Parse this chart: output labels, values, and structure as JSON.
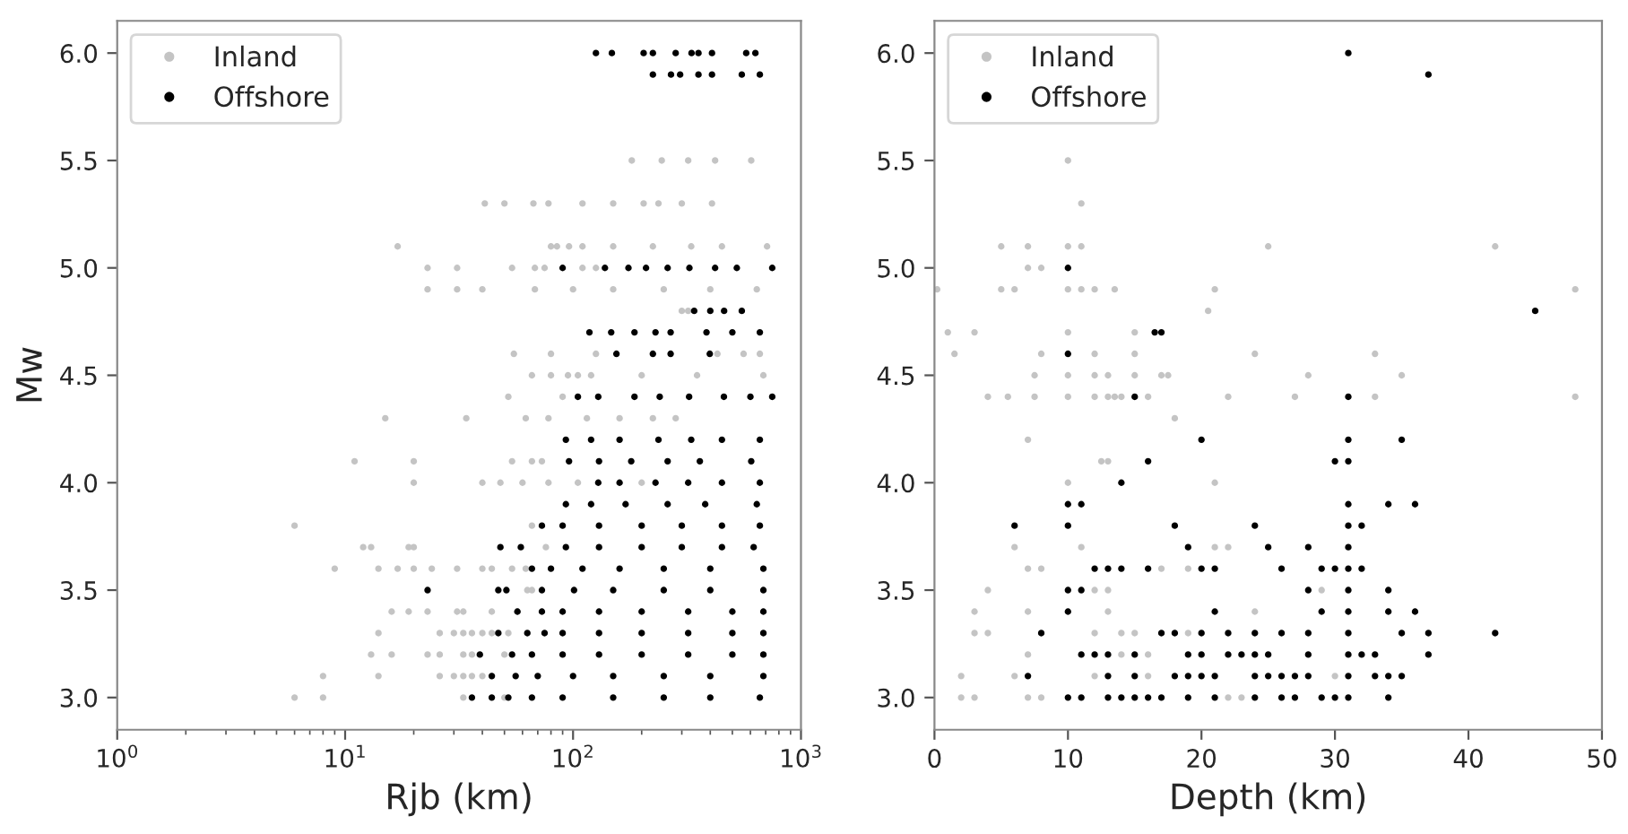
{
  "chart_data": [
    {
      "type": "scatter",
      "xlabel": "Rjb (km)",
      "ylabel": "Mw",
      "log": "x",
      "xlim": [
        1,
        1000
      ],
      "xticks": [
        {
          "value": 1,
          "label": "10$^{0}$"
        },
        {
          "value": 10,
          "label": "10$^{1}$"
        },
        {
          "value": 100,
          "label": "10$^{2}$"
        },
        {
          "value": 1000,
          "label": "10$^{3}$"
        }
      ],
      "ylim": [
        2.85,
        6.15
      ],
      "yticks": [
        {
          "value": 3,
          "label": "3.0"
        },
        {
          "value": 3.5,
          "label": "3.5"
        },
        {
          "value": 4,
          "label": "4.0"
        },
        {
          "value": 4.5,
          "label": "4.5"
        },
        {
          "value": 5,
          "label": "5.0"
        },
        {
          "value": 5.5,
          "label": "5.5"
        },
        {
          "value": 6,
          "label": "6.0"
        }
      ],
      "grid": false,
      "legend": "top left",
      "marker": "circle",
      "series": [
        {
          "name": "Inland",
          "color": "#c4c4c4",
          "x": [
            181,
            245,
            320,
            420,
            605,
            41,
            50,
            67,
            78,
            110,
            150,
            204,
            237,
            300,
            407,
            17,
            80,
            85,
            96,
            110,
            150,
            224,
            330,
            450,
            710,
            23,
            31,
            54,
            68,
            75,
            110,
            126,
            23,
            31,
            40,
            68,
            100,
            150,
            250,
            400,
            640,
            300,
            320,
            55,
            80,
            126,
            430,
            560,
            660,
            66,
            80,
            95,
            105,
            120,
            200,
            350,
            684,
            52,
            90,
            15,
            34,
            62,
            78,
            115,
            160,
            224,
            282,
            11,
            20,
            54,
            66,
            73,
            20,
            40,
            48,
            60,
            78,
            105,
            200,
            6,
            66,
            12,
            13,
            19,
            20,
            76,
            9,
            14,
            17,
            20,
            24,
            31,
            40,
            44,
            54,
            62,
            63,
            66,
            16,
            19,
            23,
            31,
            33,
            44,
            57,
            14,
            26,
            30,
            33,
            36,
            40,
            44,
            52,
            13,
            16,
            23,
            26,
            33,
            36,
            50,
            8,
            14,
            26,
            30,
            33,
            36,
            40,
            44,
            6,
            8,
            33,
            50
          ],
          "values": [
            5.5,
            5.5,
            5.5,
            5.5,
            5.5,
            5.3,
            5.3,
            5.3,
            5.3,
            5.3,
            5.3,
            5.3,
            5.3,
            5.3,
            5.3,
            5.1,
            5.1,
            5.1,
            5.1,
            5.1,
            5.1,
            5.1,
            5.1,
            5.1,
            5.1,
            5.0,
            5.0,
            5.0,
            5.0,
            5.0,
            5.0,
            5.0,
            4.9,
            4.9,
            4.9,
            4.9,
            4.9,
            4.9,
            4.9,
            4.9,
            4.9,
            4.8,
            4.8,
            4.6,
            4.6,
            4.6,
            4.6,
            4.6,
            4.6,
            4.5,
            4.5,
            4.5,
            4.5,
            4.5,
            4.5,
            4.5,
            4.5,
            4.4,
            4.4,
            4.3,
            4.3,
            4.3,
            4.3,
            4.3,
            4.3,
            4.3,
            4.3,
            4.1,
            4.1,
            4.1,
            4.1,
            4.1,
            4.0,
            4.0,
            4.0,
            4.0,
            4.0,
            4.0,
            4.0,
            3.8,
            3.8,
            3.7,
            3.7,
            3.7,
            3.7,
            3.7,
            3.6,
            3.6,
            3.6,
            3.6,
            3.6,
            3.6,
            3.6,
            3.6,
            3.6,
            3.6,
            3.5,
            3.5,
            3.4,
            3.4,
            3.4,
            3.4,
            3.4,
            3.4,
            3.4,
            3.3,
            3.3,
            3.3,
            3.3,
            3.3,
            3.3,
            3.3,
            3.3,
            3.2,
            3.2,
            3.2,
            3.2,
            3.2,
            3.2,
            3.2,
            3.1,
            3.1,
            3.1,
            3.1,
            3.1,
            3.1,
            3.1,
            3.1,
            3.0,
            3.0,
            3.0,
            3.0
          ]
        },
        {
          "name": "Offshore",
          "color": "#000000",
          "x": [
            126,
            148,
            204,
            224,
            282,
            331,
            355,
            407,
            575,
            631,
            224,
            269,
            295,
            355,
            407,
            550,
            660,
            90,
            138,
            175,
            209,
            260,
            324,
            420,
            523,
            748,
            340,
            400,
            460,
            550,
            118,
            147,
            186,
            230,
            268,
            385,
            500,
            660,
            155,
            224,
            268,
            398,
            105,
            129,
            186,
            240,
            323,
            459,
            600,
            748,
            93,
            120,
            160,
            237,
            330,
            450,
            660,
            96,
            130,
            180,
            260,
            360,
            605,
            129,
            160,
            230,
            320,
            450,
            660,
            93,
            120,
            170,
            260,
            380,
            640,
            73,
            90,
            130,
            200,
            300,
            450,
            660,
            48,
            59,
            93,
            130,
            200,
            300,
            450,
            620,
            66,
            80,
            110,
            160,
            250,
            400,
            684,
            23,
            47,
            51,
            73,
            101,
            150,
            250,
            400,
            684,
            57,
            73,
            90,
            130,
            200,
            320,
            500,
            684,
            47,
            63,
            75,
            90,
            130,
            200,
            320,
            500,
            684,
            39,
            54,
            66,
            90,
            130,
            200,
            320,
            500,
            684,
            44,
            56,
            70,
            100,
            150,
            250,
            400,
            684,
            36,
            44,
            52,
            66,
            90,
            150,
            250,
            400,
            660
          ],
          "values": [
            6.0,
            6.0,
            6.0,
            6.0,
            6.0,
            6.0,
            6.0,
            6.0,
            6.0,
            6.0,
            5.9,
            5.9,
            5.9,
            5.9,
            5.9,
            5.9,
            5.9,
            5.0,
            5.0,
            5.0,
            5.0,
            5.0,
            5.0,
            5.0,
            5.0,
            5.0,
            4.8,
            4.8,
            4.8,
            4.8,
            4.7,
            4.7,
            4.7,
            4.7,
            4.7,
            4.7,
            4.7,
            4.7,
            4.6,
            4.6,
            4.6,
            4.6,
            4.4,
            4.4,
            4.4,
            4.4,
            4.4,
            4.4,
            4.4,
            4.4,
            4.2,
            4.2,
            4.2,
            4.2,
            4.2,
            4.2,
            4.2,
            4.1,
            4.1,
            4.1,
            4.1,
            4.1,
            4.1,
            4.0,
            4.0,
            4.0,
            4.0,
            4.0,
            4.0,
            3.9,
            3.9,
            3.9,
            3.9,
            3.9,
            3.9,
            3.8,
            3.8,
            3.8,
            3.8,
            3.8,
            3.8,
            3.8,
            3.7,
            3.7,
            3.7,
            3.7,
            3.7,
            3.7,
            3.7,
            3.7,
            3.6,
            3.6,
            3.6,
            3.6,
            3.6,
            3.6,
            3.6,
            3.5,
            3.5,
            3.5,
            3.5,
            3.5,
            3.5,
            3.5,
            3.5,
            3.5,
            3.4,
            3.4,
            3.4,
            3.4,
            3.4,
            3.4,
            3.4,
            3.4,
            3.3,
            3.3,
            3.3,
            3.3,
            3.3,
            3.3,
            3.3,
            3.3,
            3.3,
            3.2,
            3.2,
            3.2,
            3.2,
            3.2,
            3.2,
            3.2,
            3.2,
            3.2,
            3.1,
            3.1,
            3.1,
            3.1,
            3.1,
            3.1,
            3.1,
            3.1,
            3.0,
            3.0,
            3.0,
            3.0,
            3.0,
            3.0,
            3.0,
            3.0,
            3.0
          ]
        }
      ]
    },
    {
      "type": "scatter",
      "xlabel": "Depth (km)",
      "xlim": [
        0,
        50
      ],
      "xticks": [
        0,
        10,
        20,
        30,
        40,
        50
      ],
      "ylim": [
        2.85,
        6.15
      ],
      "yticks": [
        {
          "value": 3,
          "label": "3.0"
        },
        {
          "value": 3.5,
          "label": "3.5"
        },
        {
          "value": 4,
          "label": "4.0"
        },
        {
          "value": 4.5,
          "label": "4.5"
        },
        {
          "value": 5,
          "label": "5.0"
        },
        {
          "value": 5.5,
          "label": "5.5"
        },
        {
          "value": 6,
          "label": "6.0"
        }
      ],
      "grid": false,
      "legend": "top left",
      "marker": "circle",
      "series": [
        {
          "name": "Inland",
          "color": "#c4c4c4",
          "x": [
            10,
            11,
            5,
            7,
            10,
            11,
            25,
            42,
            7,
            8,
            0.2,
            5,
            6,
            10,
            11,
            12,
            13.5,
            21,
            48,
            20.5,
            1,
            3,
            10,
            15,
            1.5,
            8,
            12,
            15,
            24,
            33,
            7.5,
            10,
            12,
            13,
            15,
            17,
            17.5,
            28,
            35,
            4,
            5.5,
            7.5,
            10,
            12,
            13,
            13.5,
            14,
            16,
            22,
            27,
            33,
            48,
            18,
            7,
            12.5,
            13,
            10,
            21,
            6,
            11,
            21,
            22,
            7,
            8,
            17,
            19,
            4,
            12,
            13,
            29,
            3,
            7,
            13,
            24,
            3,
            4,
            12,
            14,
            15,
            19,
            7,
            14,
            16,
            2,
            6,
            12,
            16,
            30,
            2,
            3,
            7,
            8,
            22,
            23
          ],
          "values": [
            5.5,
            5.3,
            5.1,
            5.1,
            5.1,
            5.1,
            5.1,
            5.1,
            5.0,
            5.0,
            4.9,
            4.9,
            4.9,
            4.9,
            4.9,
            4.9,
            4.9,
            4.9,
            4.9,
            4.8,
            4.7,
            4.7,
            4.7,
            4.7,
            4.6,
            4.6,
            4.6,
            4.6,
            4.6,
            4.6,
            4.5,
            4.5,
            4.5,
            4.5,
            4.5,
            4.5,
            4.5,
            4.5,
            4.5,
            4.4,
            4.4,
            4.4,
            4.4,
            4.4,
            4.4,
            4.4,
            4.4,
            4.4,
            4.4,
            4.4,
            4.4,
            4.4,
            4.3,
            4.2,
            4.1,
            4.1,
            4.0,
            4.0,
            3.7,
            3.7,
            3.7,
            3.7,
            3.6,
            3.6,
            3.6,
            3.6,
            3.5,
            3.5,
            3.5,
            3.5,
            3.4,
            3.4,
            3.4,
            3.4,
            3.3,
            3.3,
            3.3,
            3.3,
            3.3,
            3.3,
            3.2,
            3.2,
            3.2,
            3.1,
            3.1,
            3.1,
            3.1,
            3.1,
            3.0,
            3.0,
            3.0,
            3.0,
            3.0,
            3.0
          ]
        },
        {
          "name": "Offshore",
          "color": "#000000",
          "x": [
            31,
            37,
            10,
            45,
            16.5,
            17,
            10,
            15,
            31,
            20,
            31,
            35,
            16,
            30,
            31,
            14,
            10,
            11,
            31,
            34,
            36,
            6,
            10,
            18,
            24,
            31,
            32,
            19,
            25,
            28,
            31,
            12,
            13,
            14,
            16,
            20,
            21,
            26,
            29,
            30,
            31,
            32,
            10,
            11,
            28,
            31,
            34,
            10,
            21,
            29,
            31,
            34,
            36,
            8,
            17,
            18,
            20,
            22,
            24,
            26,
            28,
            31,
            35,
            37,
            42,
            11,
            12,
            13,
            15,
            19,
            20,
            22,
            23,
            24,
            25,
            28,
            31,
            32,
            33,
            37,
            7,
            13,
            15,
            18,
            19,
            20,
            21,
            24,
            25,
            26,
            27,
            28,
            31,
            33,
            34,
            35,
            10,
            11,
            13,
            14,
            15,
            16,
            17,
            19,
            21,
            24,
            26,
            27,
            29,
            30,
            31,
            34
          ],
          "values": [
            6.0,
            5.9,
            5.0,
            4.8,
            4.7,
            4.7,
            4.6,
            4.4,
            4.4,
            4.2,
            4.2,
            4.2,
            4.1,
            4.1,
            4.1,
            4.0,
            3.9,
            3.9,
            3.9,
            3.9,
            3.9,
            3.8,
            3.8,
            3.8,
            3.8,
            3.8,
            3.8,
            3.7,
            3.7,
            3.7,
            3.7,
            3.6,
            3.6,
            3.6,
            3.6,
            3.6,
            3.6,
            3.6,
            3.6,
            3.6,
            3.6,
            3.6,
            3.5,
            3.5,
            3.5,
            3.5,
            3.5,
            3.4,
            3.4,
            3.4,
            3.4,
            3.4,
            3.4,
            3.3,
            3.3,
            3.3,
            3.3,
            3.3,
            3.3,
            3.3,
            3.3,
            3.3,
            3.3,
            3.3,
            3.3,
            3.2,
            3.2,
            3.2,
            3.2,
            3.2,
            3.2,
            3.2,
            3.2,
            3.2,
            3.2,
            3.2,
            3.2,
            3.2,
            3.2,
            3.2,
            3.1,
            3.1,
            3.1,
            3.1,
            3.1,
            3.1,
            3.1,
            3.1,
            3.1,
            3.1,
            3.1,
            3.1,
            3.1,
            3.1,
            3.1,
            3.1,
            3.0,
            3.0,
            3.0,
            3.0,
            3.0,
            3.0,
            3.0,
            3.0,
            3.0,
            3.0,
            3.0,
            3.0,
            3.0,
            3.0,
            3.0,
            3.0
          ]
        }
      ]
    }
  ]
}
